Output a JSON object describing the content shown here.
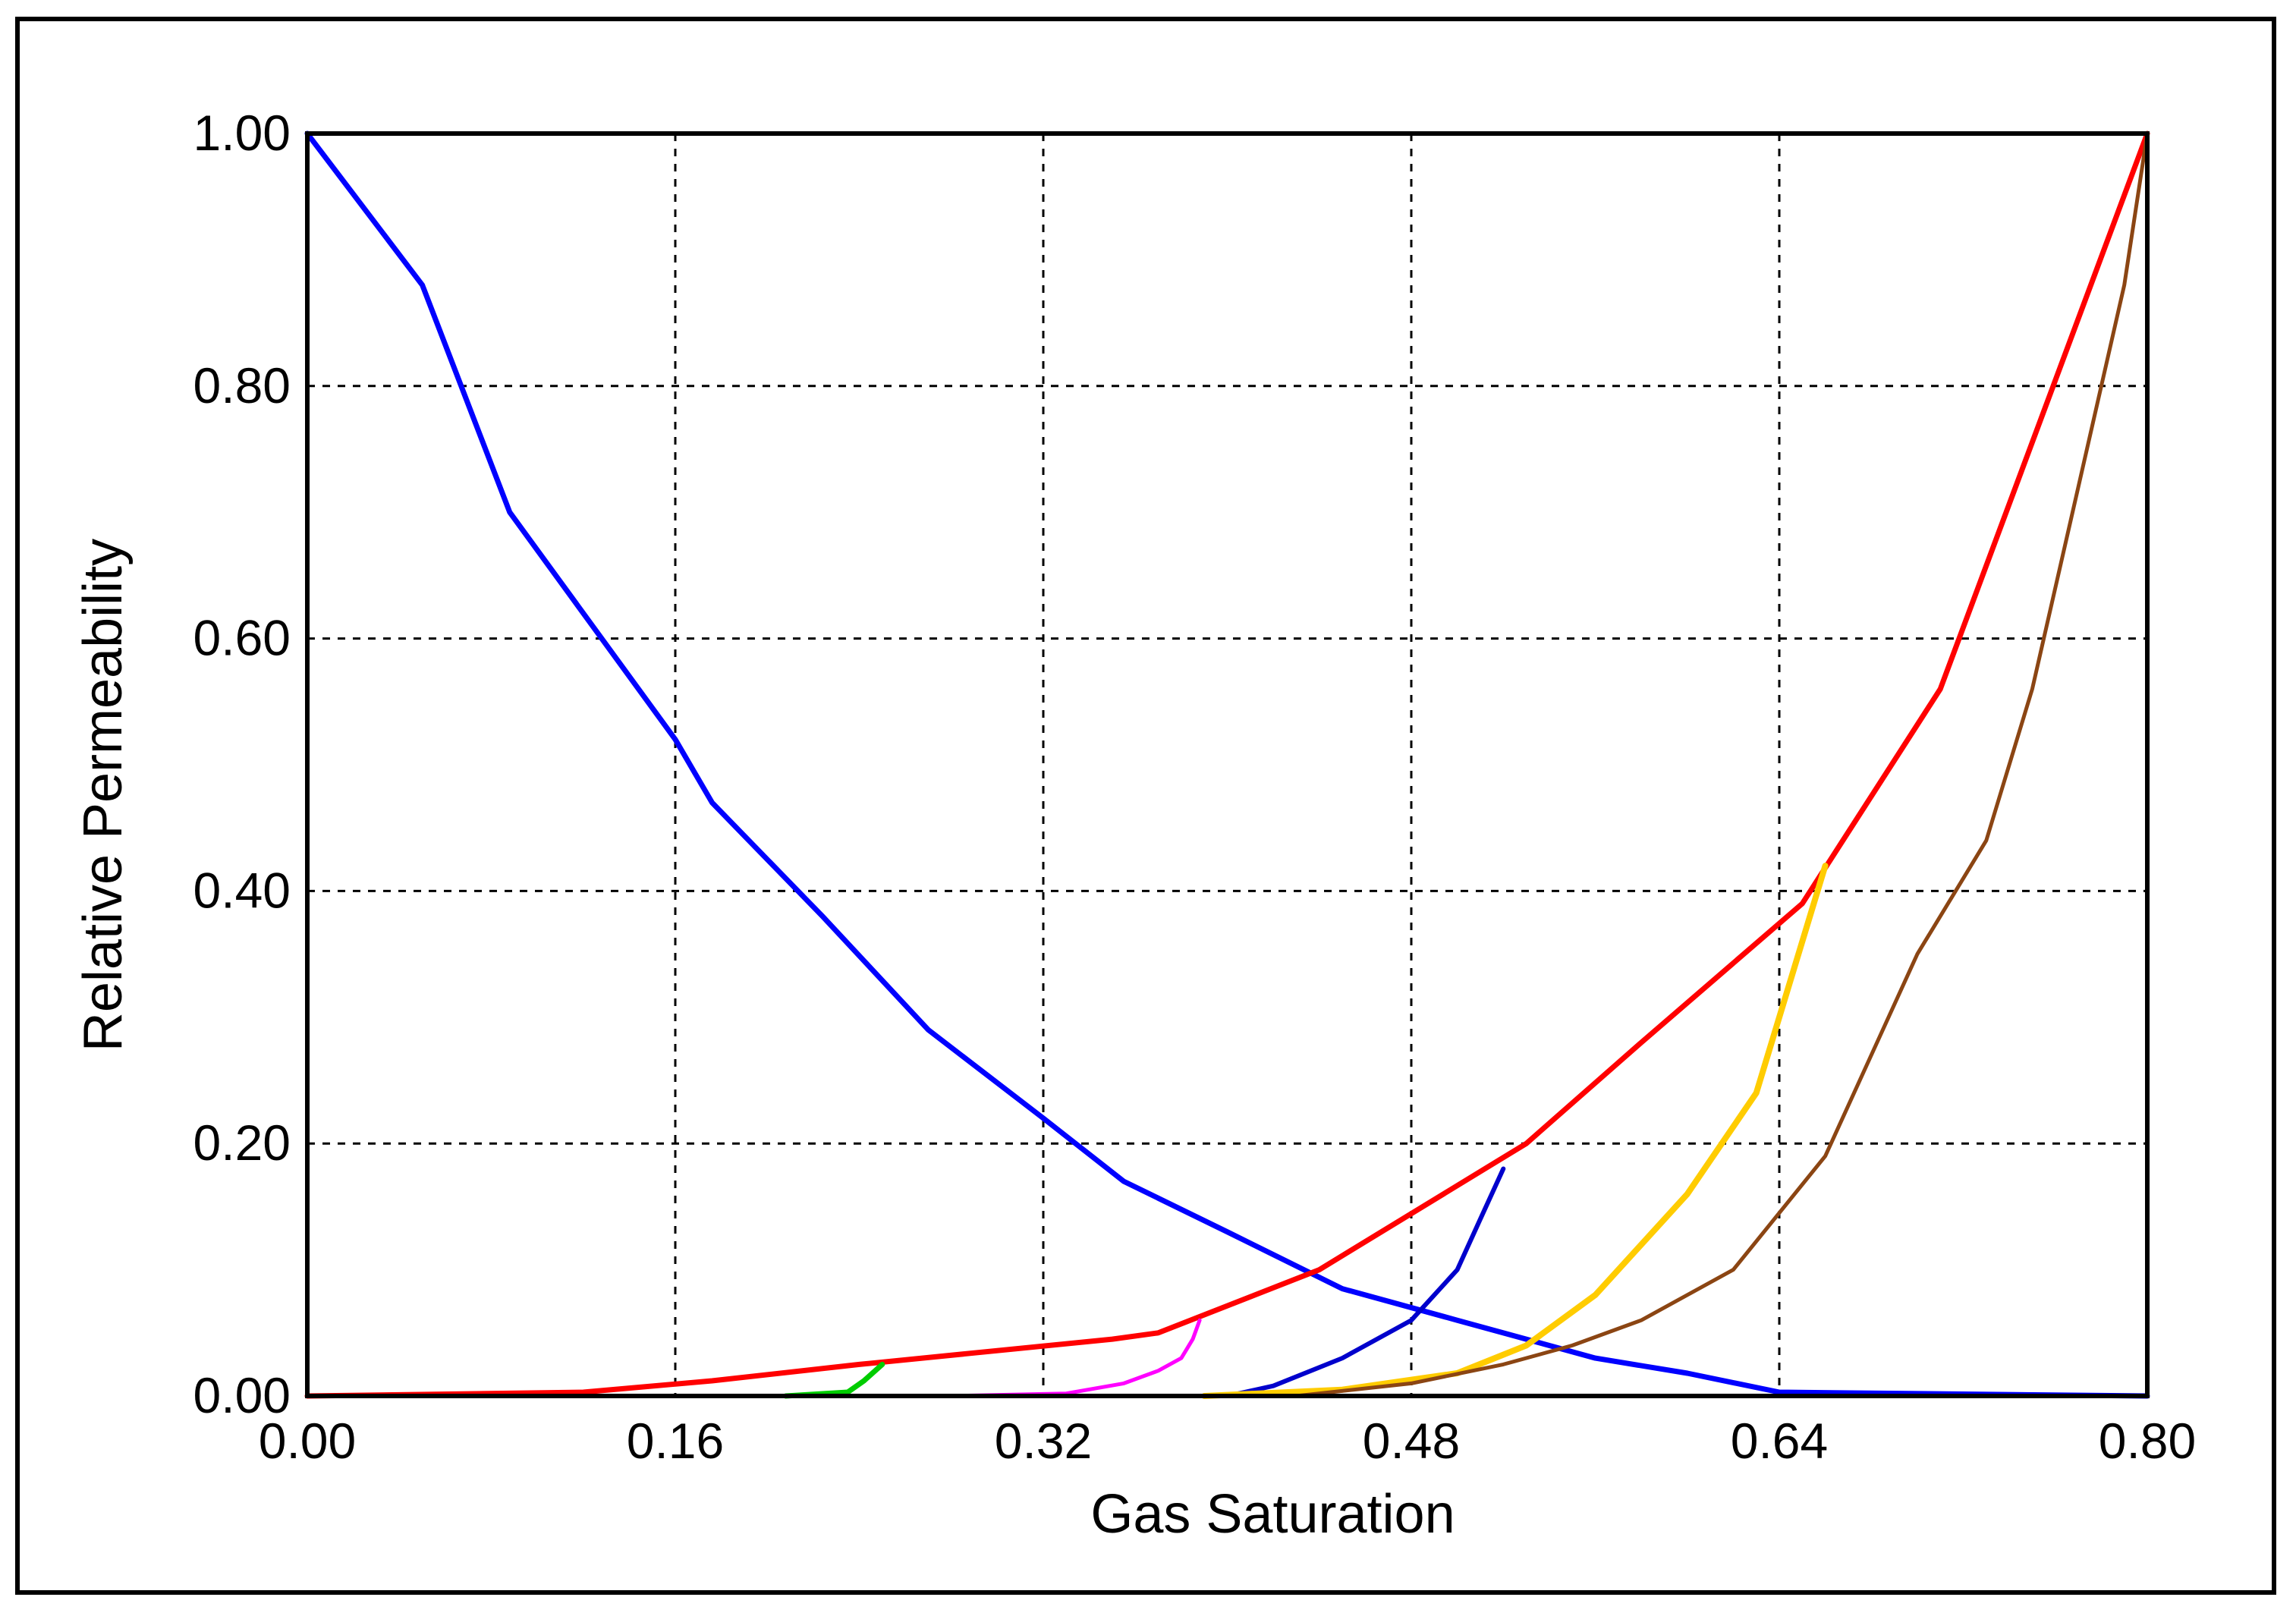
{
  "chart_data": {
    "type": "line",
    "title": "",
    "xlabel": "Gas Saturation",
    "ylabel": "Relative Permeability",
    "xlim": [
      0,
      0.8
    ],
    "ylim": [
      0,
      1
    ],
    "x_tick_labels": [
      "0.00",
      "0.16",
      "0.32",
      "0.48",
      "0.64",
      "0.80"
    ],
    "y_tick_labels": [
      "0.00",
      "0.20",
      "0.40",
      "0.60",
      "0.80",
      "1.00"
    ],
    "x_ticks": [
      0,
      0.16,
      0.32,
      0.48,
      0.64,
      0.8
    ],
    "y_ticks": [
      0,
      0.2,
      0.4,
      0.6,
      0.8,
      1.0
    ],
    "grid": true,
    "legend": "none",
    "series": [
      {
        "color": "#0000ff",
        "x": [
          0.0,
          0.05,
          0.088,
          0.16,
          0.176,
          0.224,
          0.27,
          0.32,
          0.355,
          0.4,
          0.45,
          0.5,
          0.56,
          0.6,
          0.64,
          0.8
        ],
        "y": [
          1.0,
          0.88,
          0.7,
          0.52,
          0.47,
          0.38,
          0.29,
          0.22,
          0.17,
          0.13,
          0.085,
          0.06,
          0.03,
          0.018,
          0.003,
          0.0
        ]
      },
      {
        "color": "#ff0000",
        "x": [
          0.0,
          0.12,
          0.176,
          0.24,
          0.35,
          0.37,
          0.44,
          0.53,
          0.58,
          0.65,
          0.71,
          0.8
        ],
        "y": [
          0.0,
          0.003,
          0.012,
          0.025,
          0.045,
          0.05,
          0.1,
          0.2,
          0.28,
          0.39,
          0.56,
          1.0
        ]
      },
      {
        "color": "#00cc00",
        "x": [
          0.208,
          0.235,
          0.242,
          0.25
        ],
        "y": [
          0.0,
          0.003,
          0.012,
          0.025
        ]
      },
      {
        "color": "#ff00ff",
        "x": [
          0.28,
          0.33,
          0.355,
          0.37,
          0.38,
          0.385,
          0.388
        ],
        "y": [
          0.0,
          0.002,
          0.01,
          0.02,
          0.03,
          0.045,
          0.06
        ]
      },
      {
        "color": "#0000cc",
        "x": [
          0.4,
          0.42,
          0.45,
          0.48,
          0.5,
          0.51,
          0.52
        ],
        "y": [
          0.0,
          0.008,
          0.03,
          0.06,
          0.1,
          0.14,
          0.18
        ]
      },
      {
        "color": "#ffcc00",
        "x": [
          0.39,
          0.45,
          0.5,
          0.53,
          0.56,
          0.6,
          0.63,
          0.64,
          0.66
        ],
        "y": [
          0.0,
          0.005,
          0.018,
          0.04,
          0.08,
          0.16,
          0.24,
          0.3,
          0.42
        ]
      },
      {
        "color": "#8b4513",
        "x": [
          0.43,
          0.48,
          0.52,
          0.55,
          0.58,
          0.62,
          0.66,
          0.7,
          0.73,
          0.75,
          0.77,
          0.79,
          0.8
        ],
        "y": [
          0.0,
          0.01,
          0.025,
          0.04,
          0.06,
          0.1,
          0.19,
          0.35,
          0.44,
          0.56,
          0.72,
          0.88,
          1.0
        ]
      }
    ]
  }
}
